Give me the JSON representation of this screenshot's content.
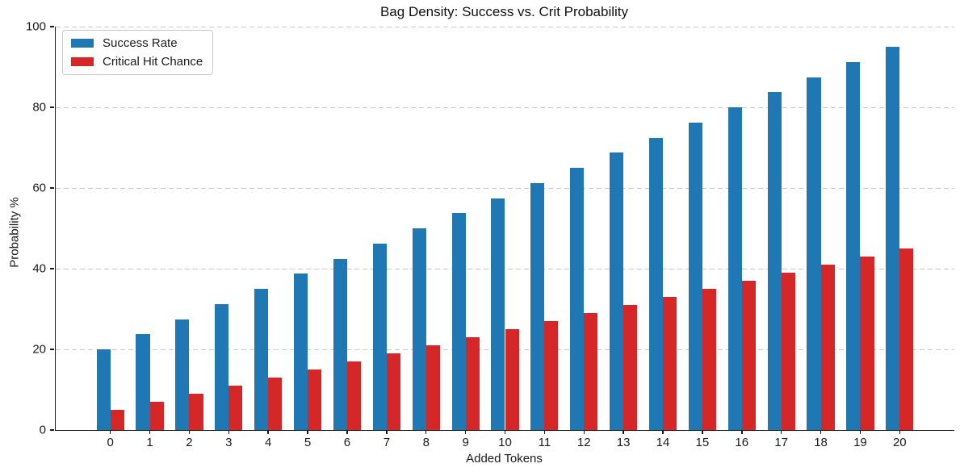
{
  "chart_data": {
    "type": "bar",
    "title": "Bag Density: Success vs. Crit Probability",
    "xlabel": "Added Tokens",
    "ylabel": "Probability %",
    "categories": [
      0,
      1,
      2,
      3,
      4,
      5,
      6,
      7,
      8,
      9,
      10,
      11,
      12,
      13,
      14,
      15,
      16,
      17,
      18,
      19,
      20
    ],
    "series": [
      {
        "name": "Success Rate",
        "color": "#1f77b4",
        "values": [
          20,
          23.75,
          27.5,
          31.25,
          35,
          38.75,
          42.5,
          46.25,
          50,
          53.75,
          57.5,
          61.25,
          65,
          68.75,
          72.5,
          76.25,
          80,
          83.75,
          87.5,
          91.25,
          95
        ]
      },
      {
        "name": "Critical Hit Chance",
        "color": "#d62728",
        "values": [
          5,
          7,
          9,
          11,
          13,
          15,
          17,
          19,
          21,
          23,
          25,
          27,
          29,
          31,
          33,
          35,
          37,
          39,
          41,
          43,
          45
        ]
      }
    ],
    "ylim": [
      0,
      100
    ],
    "yticks": [
      0,
      20,
      40,
      60,
      80,
      100
    ],
    "grid": "horizontal-dashed",
    "grid_color": "#c8c8c8",
    "legend_position": "upper-left",
    "text_color": "#1a1a1a"
  }
}
